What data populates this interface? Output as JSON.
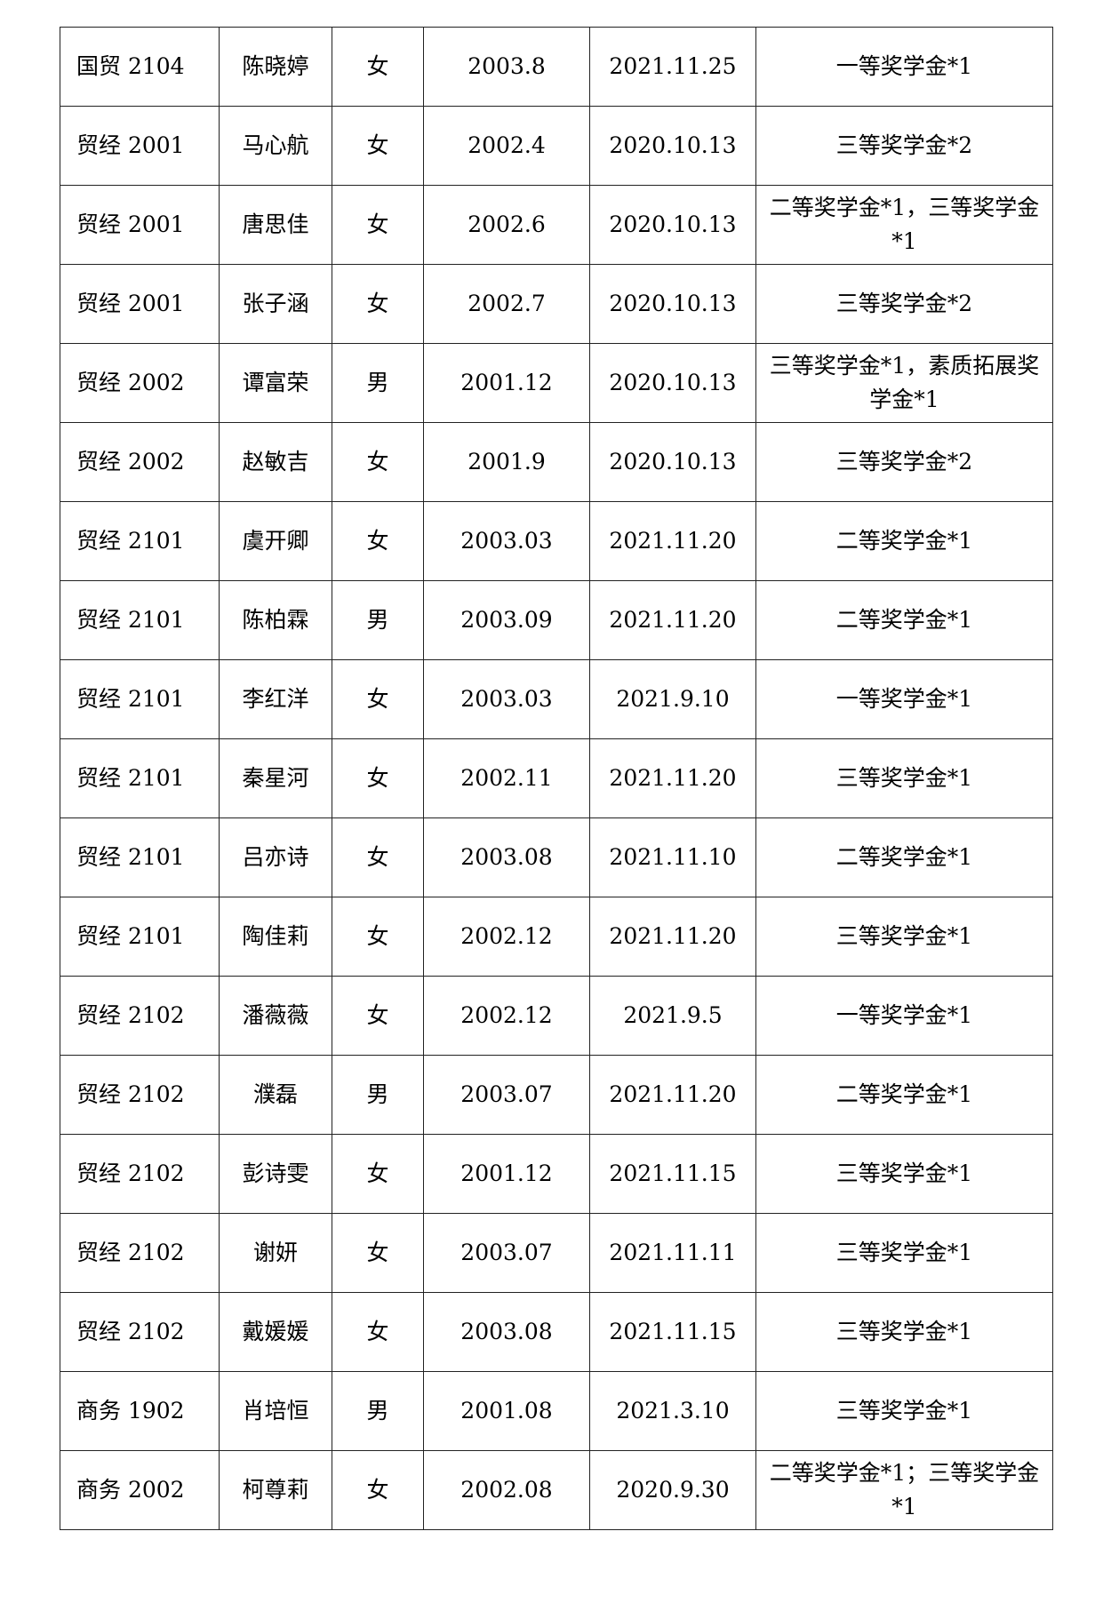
{
  "rows": [
    [
      "国贸 2104",
      "陈晓婷",
      "女",
      "2003.8",
      "2021.11.25",
      "一等奖学金*1"
    ],
    [
      "贸经 2001",
      "马心航",
      "女",
      "2002.4",
      "2020.10.13",
      "三等奖学金*2"
    ],
    [
      "贸经 2001",
      "唐思佳",
      "女",
      "2002.6",
      "2020.10.13",
      "二等奖学金*1，三等奖学金*1"
    ],
    [
      "贸经 2001",
      "张子涵",
      "女",
      "2002.7",
      "2020.10.13",
      "三等奖学金*2"
    ],
    [
      "贸经 2002",
      "谭富荣",
      "男",
      "2001.12",
      "2020.10.13",
      "三等奖学金*1，素质拓展奖学金*1"
    ],
    [
      "贸经 2002",
      "赵敏吉",
      "女",
      "2001.9",
      "2020.10.13",
      "三等奖学金*2"
    ],
    [
      "贸经 2101",
      "虞开卿",
      "女",
      "2003.03",
      "2021.11.20",
      "二等奖学金*1"
    ],
    [
      "贸经 2101",
      "陈柏霖",
      "男",
      "2003.09",
      "2021.11.20",
      "二等奖学金*1"
    ],
    [
      "贸经 2101",
      "李红洋",
      "女",
      "2003.03",
      "2021.9.10",
      "一等奖学金*1"
    ],
    [
      "贸经 2101",
      "秦星河",
      "女",
      "2002.11",
      "2021.11.20",
      "三等奖学金*1"
    ],
    [
      "贸经 2101",
      "吕亦诗",
      "女",
      "2003.08",
      "2021.11.10",
      "二等奖学金*1"
    ],
    [
      "贸经 2101",
      "陶佳莉",
      "女",
      "2002.12",
      "2021.11.20",
      "三等奖学金*1"
    ],
    [
      "贸经 2102",
      "潘薇薇",
      "女",
      "2002.12",
      "2021.9.5",
      "一等奖学金*1"
    ],
    [
      "贸经 2102",
      "濮磊",
      "男",
      "2003.07",
      "2021.11.20",
      "二等奖学金*1"
    ],
    [
      "贸经 2102",
      "彭诗雯",
      "女",
      "2001.12",
      "2021.11.15",
      "三等奖学金*1"
    ],
    [
      "贸经 2102",
      "谢妍",
      "女",
      "2003.07",
      "2021.11.11",
      "三等奖学金*1"
    ],
    [
      "贸经 2102",
      "戴媛媛",
      "女",
      "2003.08",
      "2021.11.15",
      "三等奖学金*1"
    ],
    [
      "商务 1902",
      "肖培恒",
      "男",
      "2001.08",
      "2021.3.10",
      "三等奖学金*1"
    ],
    [
      "商务 2002",
      "柯尊莉",
      "女",
      "2002.08",
      "2020.9.30",
      "二等奖学金*1；三等奖学金*1"
    ]
  ]
}
